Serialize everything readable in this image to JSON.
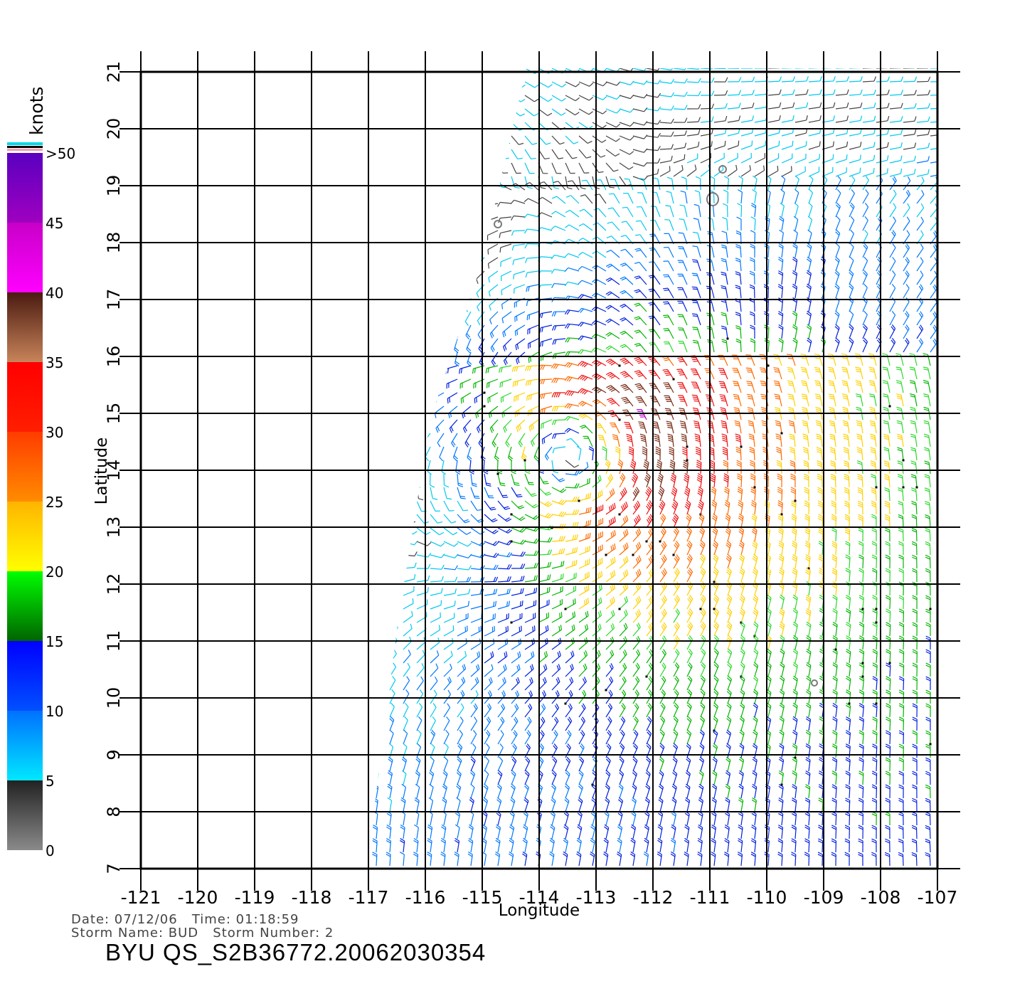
{
  "chart_data": {
    "type": "wind-barb-map",
    "xlabel": "Longitude",
    "ylabel": "Latitude",
    "x_ticks": [
      "-121",
      "-120",
      "-119",
      "-118",
      "-117",
      "-116",
      "-115",
      "-114",
      "-113",
      "-112",
      "-111",
      "-110",
      "-109",
      "-108",
      "-107"
    ],
    "y_ticks": [
      "7",
      "8",
      "9",
      "10",
      "11",
      "12",
      "13",
      "14",
      "15",
      "16",
      "17",
      "18",
      "19",
      "20",
      "21"
    ],
    "xlim": [
      -121,
      -107
    ],
    "ylim": [
      7,
      21
    ],
    "grid": true,
    "storm_center": {
      "lon": -113.1,
      "lat": 14.3
    },
    "colorbar": {
      "unit": "knots",
      "labels": [
        "0",
        "5",
        "10",
        "15",
        "20",
        "25",
        "30",
        "35",
        "40",
        "45",
        ">50"
      ],
      "bands": [
        {
          "from": 0,
          "to": 5,
          "colors": [
            "#8a8a8a",
            "#222222"
          ]
        },
        {
          "from": 5,
          "to": 10,
          "colors": [
            "#00e8ff",
            "#0070ff"
          ]
        },
        {
          "from": 10,
          "to": 15,
          "colors": [
            "#0050ff",
            "#0000ff"
          ]
        },
        {
          "from": 15,
          "to": 20,
          "colors": [
            "#006400",
            "#00ff00"
          ]
        },
        {
          "from": 20,
          "to": 25,
          "colors": [
            "#ffff00",
            "#ffb400"
          ]
        },
        {
          "from": 25,
          "to": 30,
          "colors": [
            "#ff8c00",
            "#ff3c00"
          ]
        },
        {
          "from": 30,
          "to": 35,
          "colors": [
            "#ff1e00",
            "#ff0000"
          ]
        },
        {
          "from": 35,
          "to": 40,
          "colors": [
            "#c8845a",
            "#4a1a10"
          ]
        },
        {
          "from": 40,
          "to": 45,
          "colors": [
            "#ff00ff",
            "#c800c8"
          ]
        },
        {
          "from": 45,
          "to": 50,
          "colors": [
            "#a000c0",
            "#5a00c0"
          ]
        }
      ]
    }
  },
  "meta": {
    "date_line": "Date: 07/12/06   Time: 01:18:59",
    "storm_line": "Storm Name: BUD   Storm Number: 2",
    "filename": "BYU QS_S2B36772.20062030354"
  }
}
